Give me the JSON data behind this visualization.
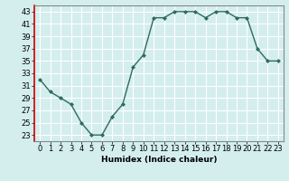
{
  "x": [
    0,
    1,
    2,
    3,
    4,
    5,
    6,
    7,
    8,
    9,
    10,
    11,
    12,
    13,
    14,
    15,
    16,
    17,
    18,
    19,
    20,
    21,
    22,
    23
  ],
  "y": [
    32,
    30,
    29,
    28,
    25,
    23,
    23,
    26,
    28,
    34,
    36,
    42,
    42,
    43,
    43,
    43,
    42,
    43,
    43,
    42,
    42,
    37,
    35,
    35
  ],
  "xlabel": "Humidex (Indice chaleur)",
  "xlim": [
    -0.5,
    23.5
  ],
  "ylim": [
    22,
    44
  ],
  "yticks": [
    23,
    25,
    27,
    29,
    31,
    33,
    35,
    37,
    39,
    41,
    43
  ],
  "xticks": [
    0,
    1,
    2,
    3,
    4,
    5,
    6,
    7,
    8,
    9,
    10,
    11,
    12,
    13,
    14,
    15,
    16,
    17,
    18,
    19,
    20,
    21,
    22,
    23
  ],
  "line_color": "#2e6b5e",
  "marker": "D",
  "marker_size": 2.0,
  "bg_color": "#d4eeee",
  "grid_color": "#ffffff",
  "line_width": 1.0,
  "left_spine_color": "#cc0000",
  "tick_fontsize": 6,
  "xlabel_fontsize": 6.5
}
